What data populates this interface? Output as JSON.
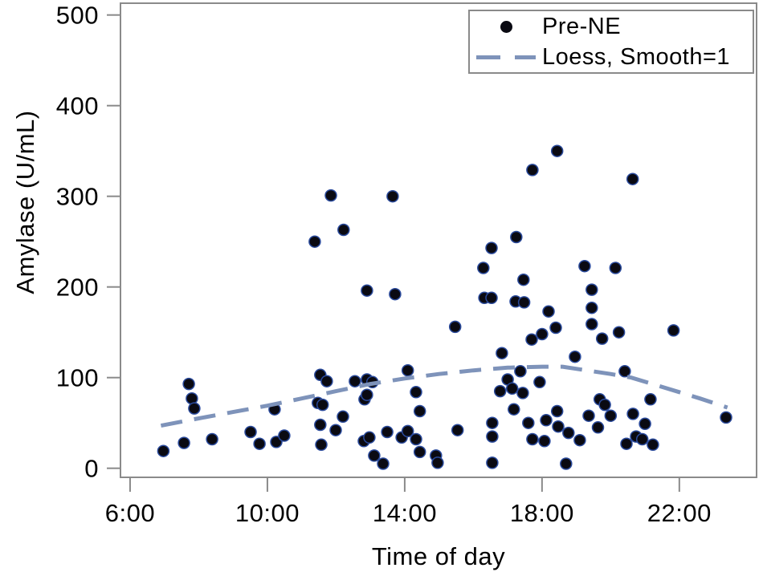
{
  "figure": {
    "background": "#ffffff"
  },
  "colors": {
    "frame": "#8a8a8a",
    "tick": "#8a8a8a",
    "text": "#000000",
    "point_fill": "#0a0a12",
    "point_edge": "#2a4a9c",
    "loess_line": "#7e93ba"
  },
  "chart_data": {
    "type": "scatter",
    "title": "",
    "xlabel": "Time of day",
    "ylabel": "Amylase (U/mL)",
    "xlim": [
      5.72,
      24.25
    ],
    "ylim": [
      -10,
      513
    ],
    "grid": false,
    "legend_position": "top-right",
    "x_ticks": [
      {
        "value": 6,
        "label": "6:00"
      },
      {
        "value": 10,
        "label": "10:00"
      },
      {
        "value": 14,
        "label": "14:00"
      },
      {
        "value": 18,
        "label": "18:00"
      },
      {
        "value": 22,
        "label": "22:00"
      }
    ],
    "y_ticks": [
      {
        "value": 0,
        "label": "0"
      },
      {
        "value": 100,
        "label": "100"
      },
      {
        "value": 200,
        "label": "200"
      },
      {
        "value": 300,
        "label": "300"
      },
      {
        "value": 400,
        "label": "400"
      },
      {
        "value": 500,
        "label": "500"
      }
    ],
    "series": [
      {
        "name": "Pre-NE",
        "kind": "scatter",
        "marker": "filled-circle",
        "color": "#0a0a12",
        "points": [
          [
            6.97,
            19
          ],
          [
            7.57,
            28
          ],
          [
            7.71,
            93
          ],
          [
            7.8,
            77
          ],
          [
            7.87,
            66
          ],
          [
            8.39,
            32
          ],
          [
            9.51,
            40
          ],
          [
            9.77,
            27
          ],
          [
            10.21,
            65
          ],
          [
            10.26,
            29
          ],
          [
            10.49,
            36
          ],
          [
            11.38,
            250
          ],
          [
            11.47,
            72
          ],
          [
            11.54,
            103
          ],
          [
            11.54,
            48
          ],
          [
            11.57,
            26
          ],
          [
            11.61,
            70
          ],
          [
            11.73,
            96
          ],
          [
            11.85,
            301
          ],
          [
            11.99,
            42
          ],
          [
            12.2,
            57
          ],
          [
            12.22,
            263
          ],
          [
            12.55,
            96
          ],
          [
            12.81,
            30
          ],
          [
            12.83,
            76
          ],
          [
            12.9,
            98
          ],
          [
            12.9,
            81
          ],
          [
            12.9,
            196
          ],
          [
            12.97,
            34
          ],
          [
            13.06,
            95
          ],
          [
            13.11,
            14
          ],
          [
            13.37,
            5
          ],
          [
            13.49,
            40
          ],
          [
            13.65,
            300
          ],
          [
            13.72,
            192
          ],
          [
            13.91,
            34
          ],
          [
            14.09,
            41
          ],
          [
            14.09,
            108
          ],
          [
            14.33,
            32
          ],
          [
            14.33,
            84
          ],
          [
            14.44,
            63
          ],
          [
            14.44,
            18
          ],
          [
            14.91,
            14
          ],
          [
            14.96,
            6
          ],
          [
            15.47,
            156
          ],
          [
            15.54,
            42
          ],
          [
            16.29,
            221
          ],
          [
            16.32,
            188
          ],
          [
            16.53,
            243
          ],
          [
            16.53,
            188
          ],
          [
            16.55,
            50
          ],
          [
            16.55,
            35
          ],
          [
            16.55,
            6
          ],
          [
            16.78,
            85
          ],
          [
            16.83,
            127
          ],
          [
            17.0,
            98
          ],
          [
            17.13,
            88
          ],
          [
            17.18,
            65
          ],
          [
            17.23,
            184
          ],
          [
            17.25,
            255
          ],
          [
            17.37,
            107
          ],
          [
            17.44,
            83
          ],
          [
            17.46,
            208
          ],
          [
            17.48,
            183
          ],
          [
            17.6,
            50
          ],
          [
            17.7,
            142
          ],
          [
            17.72,
            329
          ],
          [
            17.72,
            32
          ],
          [
            17.93,
            95
          ],
          [
            18.0,
            148
          ],
          [
            18.07,
            30
          ],
          [
            18.12,
            53
          ],
          [
            18.19,
            173
          ],
          [
            18.4,
            155
          ],
          [
            18.44,
            350
          ],
          [
            18.44,
            63
          ],
          [
            18.47,
            46
          ],
          [
            18.7,
            5
          ],
          [
            18.77,
            39
          ],
          [
            18.96,
            123
          ],
          [
            19.1,
            31
          ],
          [
            19.24,
            223
          ],
          [
            19.36,
            58
          ],
          [
            19.45,
            197
          ],
          [
            19.45,
            177
          ],
          [
            19.45,
            159
          ],
          [
            19.63,
            45
          ],
          [
            19.68,
            76
          ],
          [
            19.75,
            143
          ],
          [
            19.83,
            70
          ],
          [
            20.0,
            58
          ],
          [
            20.14,
            221
          ],
          [
            20.24,
            150
          ],
          [
            20.41,
            107
          ],
          [
            20.46,
            27
          ],
          [
            20.64,
            319
          ],
          [
            20.65,
            60
          ],
          [
            20.74,
            35
          ],
          [
            20.92,
            32
          ],
          [
            21.0,
            49
          ],
          [
            21.16,
            76
          ],
          [
            21.23,
            26
          ],
          [
            21.83,
            152
          ],
          [
            23.36,
            56
          ]
        ]
      },
      {
        "name": "Loess, Smooth=1",
        "kind": "line",
        "style": "dashed",
        "color": "#7e93ba",
        "points": [
          [
            6.9,
            47
          ],
          [
            8,
            55
          ],
          [
            9,
            62
          ],
          [
            10,
            69
          ],
          [
            11,
            77
          ],
          [
            12,
            85
          ],
          [
            13,
            93
          ],
          [
            14,
            99
          ],
          [
            15,
            104
          ],
          [
            16,
            108
          ],
          [
            17,
            111
          ],
          [
            18,
            112
          ],
          [
            18.6,
            112
          ],
          [
            19.3,
            108
          ],
          [
            20,
            104
          ],
          [
            20.6,
            100
          ],
          [
            21.3,
            92
          ],
          [
            22,
            84
          ],
          [
            22.6,
            77
          ],
          [
            23.4,
            67
          ]
        ]
      }
    ]
  }
}
